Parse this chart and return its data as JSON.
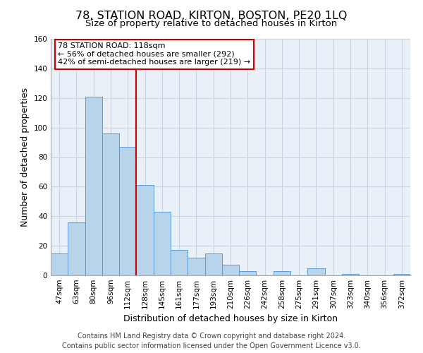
{
  "title": "78, STATION ROAD, KIRTON, BOSTON, PE20 1LQ",
  "subtitle": "Size of property relative to detached houses in Kirton",
  "xlabel": "Distribution of detached houses by size in Kirton",
  "ylabel": "Number of detached properties",
  "bar_labels": [
    "47sqm",
    "63sqm",
    "80sqm",
    "96sqm",
    "112sqm",
    "128sqm",
    "145sqm",
    "161sqm",
    "177sqm",
    "193sqm",
    "210sqm",
    "226sqm",
    "242sqm",
    "258sqm",
    "275sqm",
    "291sqm",
    "307sqm",
    "323sqm",
    "340sqm",
    "356sqm",
    "372sqm"
  ],
  "bar_values": [
    15,
    36,
    121,
    96,
    87,
    61,
    43,
    17,
    12,
    15,
    7,
    3,
    0,
    3,
    0,
    5,
    0,
    1,
    0,
    0,
    1
  ],
  "bar_color": "#b8d4ea",
  "bar_edge_color": "#5b9bd5",
  "vline_x": 4.5,
  "vline_color": "#cc0000",
  "annotation_title": "78 STATION ROAD: 118sqm",
  "annotation_line1": "← 56% of detached houses are smaller (292)",
  "annotation_line2": "42% of semi-detached houses are larger (219) →",
  "annotation_box_color": "#ffffff",
  "annotation_box_edge": "#cc0000",
  "ylim": [
    0,
    160
  ],
  "yticks": [
    0,
    20,
    40,
    60,
    80,
    100,
    120,
    140,
    160
  ],
  "footer_line1": "Contains HM Land Registry data © Crown copyright and database right 2024.",
  "footer_line2": "Contains public sector information licensed under the Open Government Licence v3.0.",
  "background_color": "#ffffff",
  "grid_color": "#c8d4e4",
  "title_fontsize": 11.5,
  "subtitle_fontsize": 9.5,
  "axis_label_fontsize": 9,
  "tick_fontsize": 7.5,
  "annotation_fontsize": 8,
  "footer_fontsize": 7
}
